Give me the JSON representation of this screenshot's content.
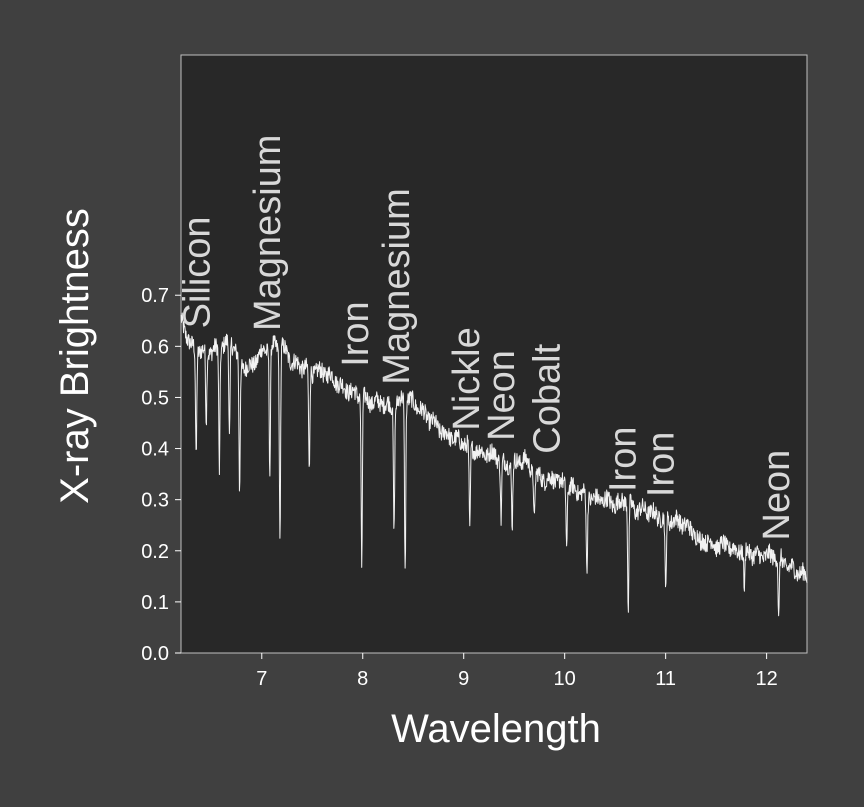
{
  "chart_data": {
    "type": "line",
    "xlabel": "Wavelength",
    "ylabel": "X-ray Brightness",
    "xlim": [
      6.2,
      12.4
    ],
    "ylim": [
      0.0,
      1.17
    ],
    "x_ticks": [
      "7",
      "8",
      "9",
      "10",
      "11",
      "12"
    ],
    "y_ticks": [
      "0.0",
      "0.1",
      "0.2",
      "0.3",
      "0.4",
      "0.5",
      "0.6",
      "0.7"
    ],
    "grid": false,
    "colors": {
      "background": "#404040",
      "plot_area": "#282828",
      "line": "#f2f2f2",
      "labels": "#d8d8d8"
    },
    "series": [
      {
        "x": [
          6.2,
          6.3,
          6.4,
          6.5,
          6.6,
          6.7,
          6.8,
          6.9,
          7.0,
          7.1,
          7.2,
          7.3,
          7.4,
          7.5,
          7.6,
          7.7,
          7.8,
          7.9,
          8.0,
          8.1,
          8.2,
          8.3,
          8.4,
          8.5,
          8.6,
          8.7,
          8.8,
          8.9,
          9.0,
          9.1,
          9.2,
          9.3,
          9.4,
          9.5,
          9.6,
          9.7,
          9.8,
          9.9,
          10.0,
          10.1,
          10.2,
          10.3,
          10.4,
          10.5,
          10.6,
          10.7,
          10.8,
          10.9,
          11.0,
          11.1,
          11.2,
          11.3,
          11.4,
          11.5,
          11.6,
          11.7,
          11.8,
          11.9,
          12.0,
          12.1,
          12.2,
          12.3,
          12.4
        ],
        "values": [
          0.65,
          0.6,
          0.59,
          0.59,
          0.6,
          0.61,
          0.56,
          0.56,
          0.59,
          0.6,
          0.6,
          0.57,
          0.56,
          0.55,
          0.55,
          0.54,
          0.52,
          0.51,
          0.5,
          0.49,
          0.49,
          0.48,
          0.5,
          0.49,
          0.47,
          0.45,
          0.43,
          0.42,
          0.41,
          0.4,
          0.39,
          0.39,
          0.37,
          0.37,
          0.38,
          0.35,
          0.34,
          0.34,
          0.33,
          0.32,
          0.31,
          0.3,
          0.3,
          0.29,
          0.3,
          0.28,
          0.28,
          0.27,
          0.26,
          0.26,
          0.25,
          0.23,
          0.22,
          0.21,
          0.21,
          0.2,
          0.2,
          0.19,
          0.19,
          0.19,
          0.17,
          0.16,
          0.15
        ]
      }
    ],
    "absorption_lines": [
      {
        "x": 6.35,
        "depth": 0.38
      },
      {
        "x": 6.45,
        "depth": 0.45
      },
      {
        "x": 6.58,
        "depth": 0.36
      },
      {
        "x": 6.68,
        "depth": 0.42
      },
      {
        "x": 6.78,
        "depth": 0.31
      },
      {
        "x": 7.08,
        "depth": 0.35
      },
      {
        "x": 7.18,
        "depth": 0.22
      },
      {
        "x": 7.47,
        "depth": 0.35
      },
      {
        "x": 7.99,
        "depth": 0.17
      },
      {
        "x": 8.31,
        "depth": 0.24
      },
      {
        "x": 8.42,
        "depth": 0.16
      },
      {
        "x": 9.06,
        "depth": 0.23
      },
      {
        "x": 9.37,
        "depth": 0.26
      },
      {
        "x": 9.48,
        "depth": 0.25
      },
      {
        "x": 9.7,
        "depth": 0.26
      },
      {
        "x": 10.02,
        "depth": 0.21
      },
      {
        "x": 10.22,
        "depth": 0.15
      },
      {
        "x": 10.63,
        "depth": 0.08
      },
      {
        "x": 11.0,
        "depth": 0.11
      },
      {
        "x": 11.35,
        "depth": 0.2
      },
      {
        "x": 11.78,
        "depth": 0.12
      },
      {
        "x": 12.12,
        "depth": 0.06
      }
    ],
    "annotations": [
      {
        "text": "Silicon",
        "x": 6.48,
        "y": 0.635
      },
      {
        "text": "Magnesium",
        "x": 7.18,
        "y": 0.63
      },
      {
        "text": "Iron",
        "x": 8.05,
        "y": 0.56
      },
      {
        "text": "Magnesium",
        "x": 8.46,
        "y": 0.525
      },
      {
        "text": "Nickle",
        "x": 9.15,
        "y": 0.435
      },
      {
        "text": "Neon",
        "x": 9.5,
        "y": 0.415
      },
      {
        "text": "Cobalt",
        "x": 9.95,
        "y": 0.39
      },
      {
        "text": "Iron",
        "x": 10.7,
        "y": 0.315
      },
      {
        "text": "Iron",
        "x": 11.08,
        "y": 0.305
      },
      {
        "text": "Neon",
        "x": 12.22,
        "y": 0.22
      }
    ]
  }
}
